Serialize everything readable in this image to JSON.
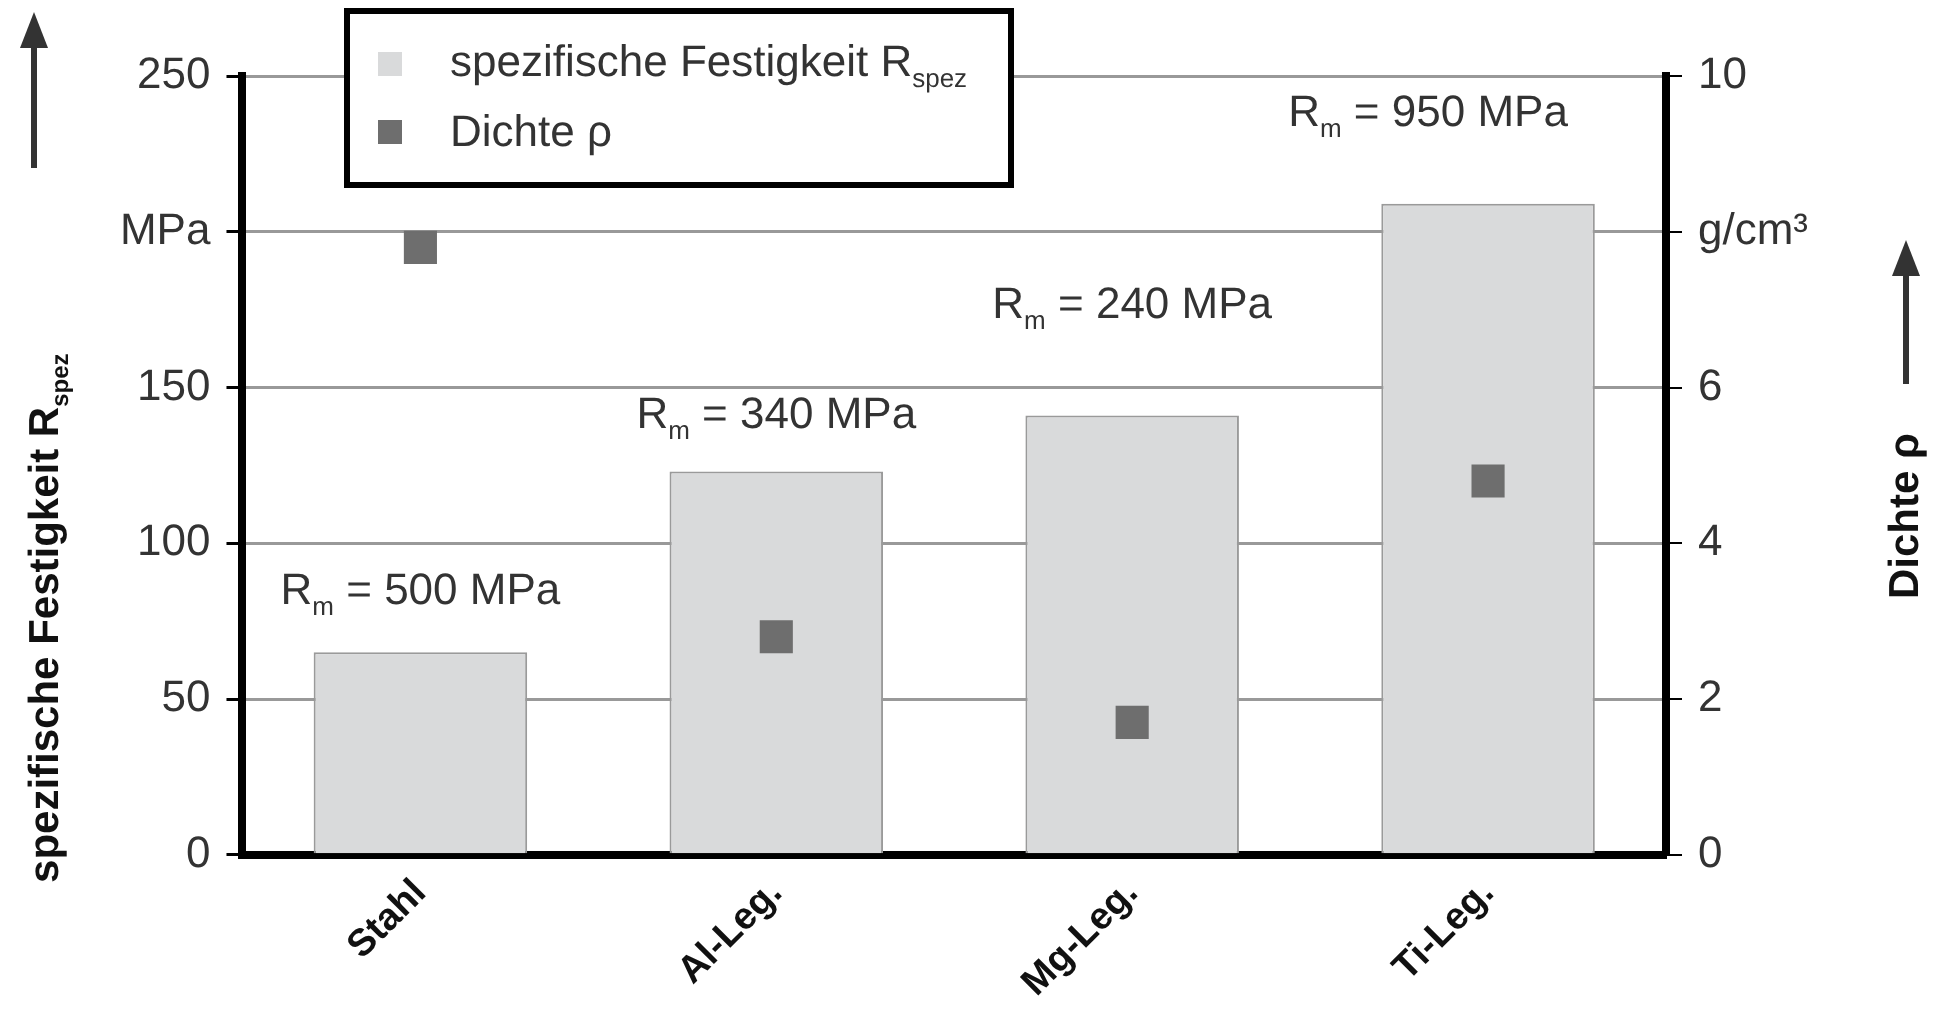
{
  "chart_data": {
    "type": "bar",
    "categories": [
      "Stahl",
      "Al-Leg.",
      "Mg-Leg.",
      "Ti-Leg."
    ],
    "series": [
      {
        "name": "spezifische Festigkeit  R$_{spez}$",
        "color": "#d9dadb",
        "values": [
          65,
          123,
          141,
          209
        ]
      },
      {
        "name": "Dichte  ρ",
        "type": "scatter",
        "axis": "y2",
        "color": "#6e6e6e",
        "x": [
          "Stahl",
          "Al-Leg.",
          "Mg-Leg.",
          "Ti-Leg."
        ],
        "values": [
          7.8,
          2.8,
          1.7,
          4.8
        ]
      }
    ],
    "ylabel": "spezifische Festigkeit  R$_{spez}$",
    "y2label": "Dichte  ρ",
    "ylim": [
      0,
      250
    ],
    "yticks": [
      0,
      50,
      100,
      150,
      {
        "value": 200,
        "label": "MPa"
      },
      250
    ],
    "y2lim": [
      0,
      10
    ],
    "y2ticks": [
      0,
      2,
      4,
      6,
      {
        "value": 8,
        "label": "g/cm³"
      },
      10
    ],
    "annotations": [
      "R$_{m}$ = 500 MPa",
      "R$_{m}$ = 340 MPa",
      "R$_{m}$ = 240 MPa",
      "R$_{m}$ = 950 MPa"
    ],
    "grid": "y",
    "legend": "top left",
    "marker": "square"
  }
}
